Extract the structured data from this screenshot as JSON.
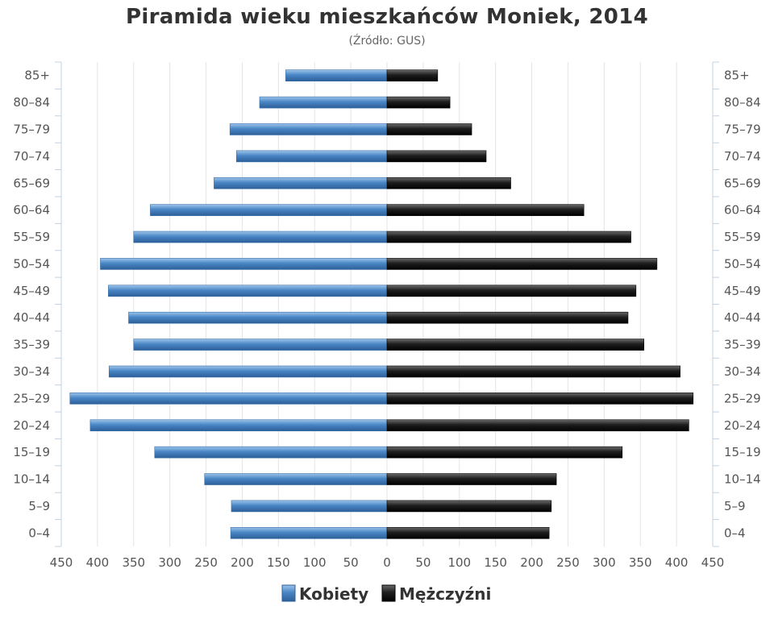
{
  "chart_data": {
    "type": "bar",
    "title": "Piramida wieku mieszkańców Moniek, 2014",
    "subtitle": "(Źródło: GUS)",
    "categories": [
      "85+",
      "80–84",
      "75–79",
      "70–74",
      "65–69",
      "60–64",
      "55–59",
      "50–54",
      "45–49",
      "40–44",
      "35–39",
      "30–34",
      "25–29",
      "20–24",
      "15–19",
      "10–14",
      "5–9",
      "0–4"
    ],
    "series": [
      {
        "name": "Kobiety",
        "color": "#4a86c5",
        "values": [
          140,
          176,
          217,
          208,
          239,
          327,
          350,
          396,
          385,
          357,
          350,
          384,
          438,
          410,
          321,
          252,
          215,
          216
        ]
      },
      {
        "name": "Mężczyźni",
        "color": "#222222",
        "values": [
          70,
          87,
          117,
          137,
          171,
          272,
          337,
          373,
          344,
          333,
          355,
          405,
          423,
          417,
          325,
          234,
          227,
          224
        ]
      }
    ],
    "xlim": [
      -450,
      450
    ],
    "xticks": [
      "450",
      "400",
      "350",
      "300",
      "250",
      "200",
      "150",
      "100",
      "50",
      "0",
      "50",
      "100",
      "150",
      "200",
      "250",
      "300",
      "350",
      "400",
      "450"
    ],
    "grid": true,
    "legend_position": "bottom-center"
  }
}
